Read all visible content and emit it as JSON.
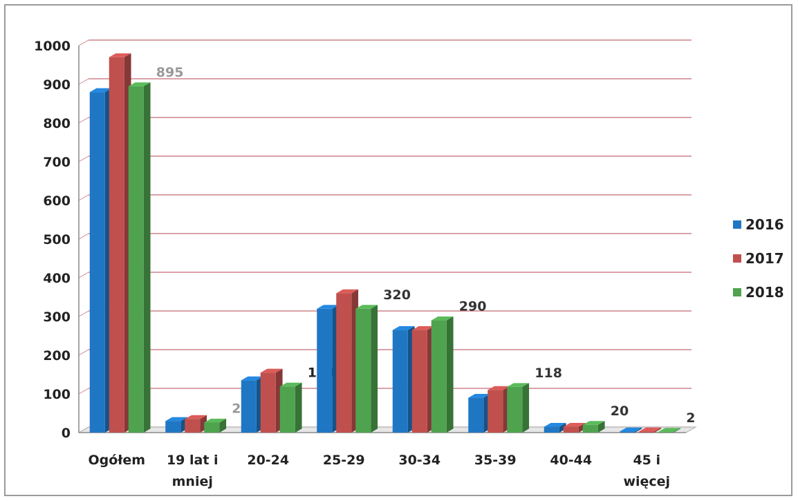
{
  "chart_data": {
    "type": "bar",
    "title": "",
    "xlabel": "",
    "ylabel": "",
    "ylim": [
      0,
      1000
    ],
    "yticks": [
      0,
      100,
      200,
      300,
      400,
      500,
      600,
      700,
      800,
      900,
      1000
    ],
    "grid": true,
    "legend_position": "right",
    "categories": [
      "Ogółem",
      "19 lat i mniej",
      "20-24",
      "25-29",
      "30-34",
      "35-39",
      "40-44",
      "45 i więcej"
    ],
    "series": [
      {
        "name": "2016",
        "color": "#1f77c4",
        "values": [
          880,
          30,
          135,
          320,
          265,
          90,
          15,
          3
        ]
      },
      {
        "name": "2017",
        "color": "#c0504d",
        "values": [
          970,
          35,
          155,
          360,
          265,
          110,
          15,
          3
        ]
      },
      {
        "name": "2018",
        "color": "#4fa34f",
        "values": [
          895,
          26,
          119,
          320,
          290,
          118,
          20,
          2
        ]
      }
    ],
    "data_labels": {
      "series": "2018",
      "values": [
        "895",
        "26",
        "119",
        "320",
        "290",
        "118",
        "20",
        "2"
      ],
      "colors": [
        "#999999",
        "#999999",
        "#222222",
        "#333333",
        "#333333",
        "#333333",
        "#333333",
        "#333333"
      ]
    }
  }
}
